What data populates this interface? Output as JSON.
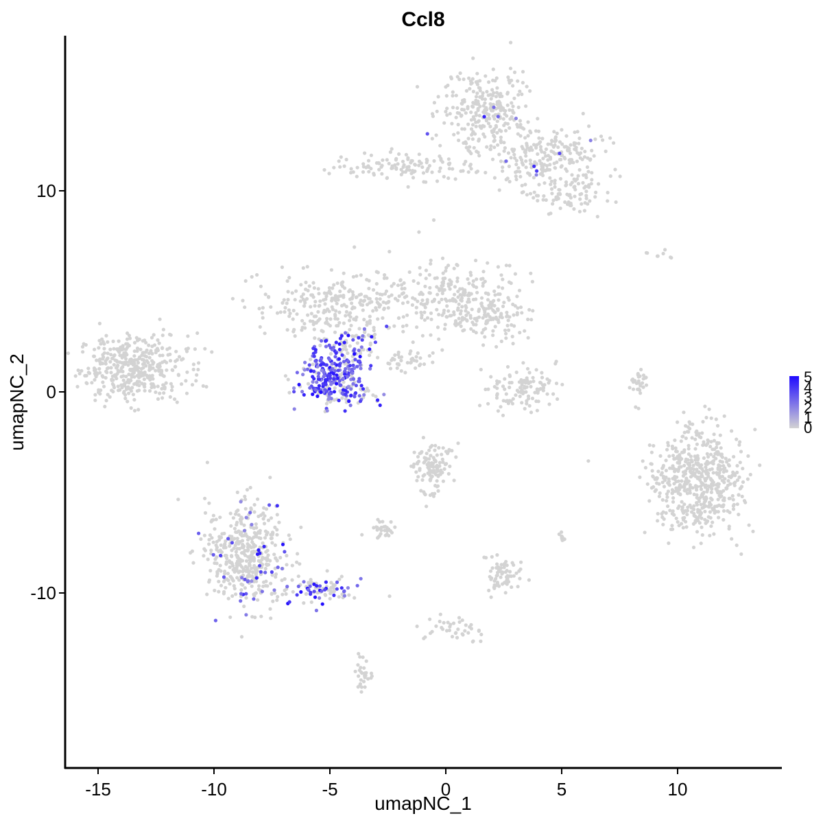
{
  "chart_data": {
    "type": "scatter",
    "title": "Ccl8",
    "xlabel": "umapNC_1",
    "ylabel": "umapNC_2",
    "xlim": [
      -16.5,
      14.5
    ],
    "ylim": [
      -18.5,
      17.8
    ],
    "x_ticks": [
      -15,
      -10,
      -5,
      0,
      5,
      10
    ],
    "x_tick_labels": [
      "-15",
      "-10",
      "-5",
      "0",
      "5",
      "10"
    ],
    "y_ticks": [
      -10,
      0,
      10
    ],
    "y_tick_labels": [
      "-10",
      "0",
      "10"
    ],
    "grid": false,
    "legend": {
      "placement": "right",
      "min": 0,
      "max": 5,
      "tick_values": [
        0,
        1,
        2,
        3,
        4,
        5
      ],
      "tick_labels": [
        "0",
        "1",
        "2",
        "3",
        "4",
        "5"
      ],
      "low_color": "#d3d3d3",
      "high_color": "#1f0aff"
    },
    "clusters": [
      {
        "name": "",
        "cx": -13.5,
        "cy": 1.2,
        "sx": 1.3,
        "sy": 0.9,
        "n": 420,
        "expr": 0
      },
      {
        "name": "",
        "cx": 1.6,
        "cy": 14.0,
        "sx": 1.0,
        "sy": 1.1,
        "n": 260,
        "expr": 0.02
      },
      {
        "name": "",
        "cx": 4.3,
        "cy": 11.8,
        "sx": 1.3,
        "sy": 0.9,
        "n": 240,
        "expr": 0.02
      },
      {
        "name": "",
        "cx": 5.2,
        "cy": 9.8,
        "sx": 0.8,
        "sy": 0.6,
        "n": 80,
        "expr": 0
      },
      {
        "name": "",
        "cx": -1.8,
        "cy": 11.2,
        "sx": 1.7,
        "sy": 0.4,
        "n": 120,
        "expr": 0.01
      },
      {
        "name": "",
        "cx": -4.6,
        "cy": 4.3,
        "sx": 2.0,
        "sy": 0.9,
        "n": 260,
        "expr": 0.01
      },
      {
        "name": "",
        "cx": 0.3,
        "cy": 4.8,
        "sx": 1.6,
        "sy": 1.1,
        "n": 230,
        "expr": 0
      },
      {
        "name": "",
        "cx": 1.9,
        "cy": 3.9,
        "sx": 0.9,
        "sy": 0.6,
        "n": 90,
        "expr": 0
      },
      {
        "name": "",
        "cx": -4.9,
        "cy": 0.9,
        "sx": 0.8,
        "sy": 0.7,
        "n": 230,
        "expr": 0.82
      },
      {
        "name": "",
        "cx": -4.7,
        "cy": -0.1,
        "sx": 0.8,
        "sy": 0.4,
        "n": 80,
        "expr": 0.6
      },
      {
        "name": "",
        "cx": -3.9,
        "cy": 2.3,
        "sx": 0.6,
        "sy": 0.5,
        "n": 70,
        "expr": 0.45
      },
      {
        "name": "",
        "cx": -1.8,
        "cy": 1.6,
        "sx": 0.7,
        "sy": 0.35,
        "n": 40,
        "expr": 0
      },
      {
        "name": "",
        "cx": 3.2,
        "cy": 0.2,
        "sx": 0.9,
        "sy": 0.6,
        "n": 110,
        "expr": 0
      },
      {
        "name": "",
        "cx": 8.3,
        "cy": 0.4,
        "sx": 0.2,
        "sy": 0.6,
        "n": 30,
        "expr": 0
      },
      {
        "name": "",
        "cx": 10.9,
        "cy": -4.4,
        "sx": 1.1,
        "sy": 1.4,
        "n": 560,
        "expr": 0
      },
      {
        "name": "",
        "cx": -0.6,
        "cy": -3.8,
        "sx": 0.5,
        "sy": 0.7,
        "n": 110,
        "expr": 0
      },
      {
        "name": "",
        "cx": -8.5,
        "cy": -8.0,
        "sx": 1.0,
        "sy": 1.4,
        "n": 460,
        "expr": 0.06
      },
      {
        "name": "",
        "cx": -5.4,
        "cy": -9.8,
        "sx": 1.0,
        "sy": 0.4,
        "n": 90,
        "expr": 0.35
      },
      {
        "name": "",
        "cx": -2.7,
        "cy": -6.8,
        "sx": 0.3,
        "sy": 0.2,
        "n": 30,
        "expr": 0
      },
      {
        "name": "",
        "cx": 2.4,
        "cy": -9.1,
        "sx": 0.4,
        "sy": 0.5,
        "n": 70,
        "expr": 0
      },
      {
        "name": "",
        "cx": 0.2,
        "cy": -11.9,
        "sx": 0.8,
        "sy": 0.4,
        "n": 40,
        "expr": 0
      },
      {
        "name": "",
        "cx": -3.5,
        "cy": -14.3,
        "sx": 0.2,
        "sy": 0.6,
        "n": 30,
        "expr": 0
      },
      {
        "name": "",
        "cx": 5.0,
        "cy": -7.2,
        "sx": 0.1,
        "sy": 0.2,
        "n": 10,
        "expr": 0
      },
      {
        "name": "",
        "cx": 9.0,
        "cy": 6.8,
        "sx": 0.6,
        "sy": 0.2,
        "n": 8,
        "expr": 0
      }
    ]
  }
}
